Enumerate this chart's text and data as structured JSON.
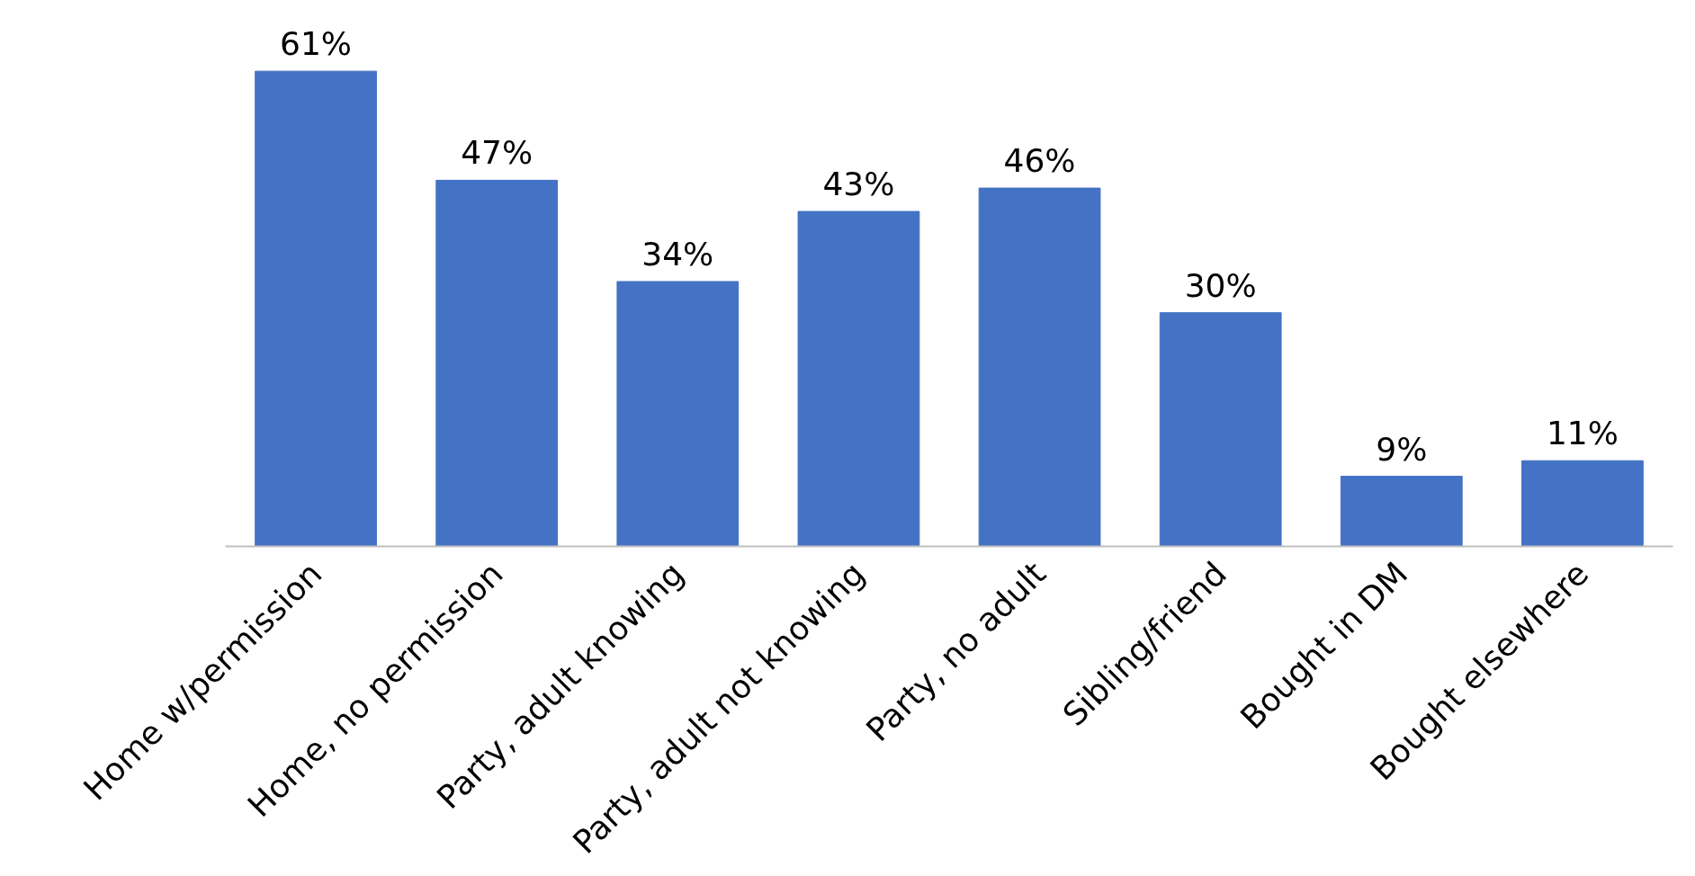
{
  "chart_data": {
    "type": "bar",
    "categories": [
      "Home w/permission",
      "Home, no permission",
      "Party, adult knowing",
      "Party, adult not knowing",
      "Party, no adult",
      "Sibling/friend",
      "Bought in DM",
      "Bought elsewhere"
    ],
    "values": [
      61,
      47,
      34,
      43,
      46,
      30,
      9,
      11
    ],
    "value_labels": [
      "61%",
      "47%",
      "34%",
      "43%",
      "46%",
      "30%",
      "9%",
      "11%"
    ],
    "color": "#4472c4",
    "grid": false
  }
}
